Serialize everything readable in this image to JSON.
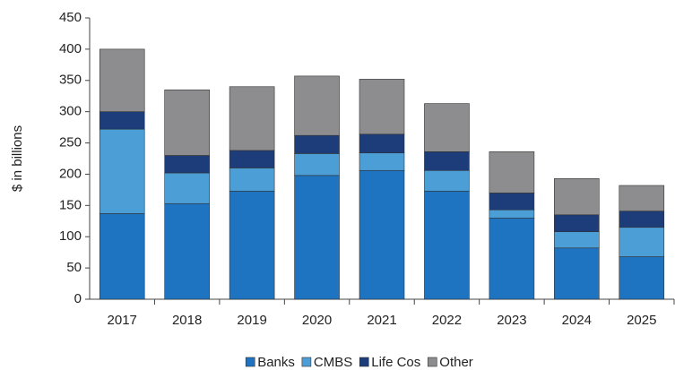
{
  "chart_data": {
    "type": "stacked_bar",
    "y_label": "$ in billions",
    "categories": [
      "2017",
      "2018",
      "2019",
      "2020",
      "2021",
      "2022",
      "2023",
      "2024",
      "2025"
    ],
    "series": [
      {
        "name": "Banks",
        "color": "#1f74c1",
        "values": [
          137,
          153,
          173,
          198,
          206,
          173,
          130,
          82,
          68
        ]
      },
      {
        "name": "CMBS",
        "color": "#4b9fd6",
        "values": [
          135,
          49,
          37,
          35,
          28,
          33,
          13,
          26,
          47
        ]
      },
      {
        "name": "Life Cos",
        "color": "#1d3c7a",
        "values": [
          28,
          28,
          28,
          29,
          30,
          30,
          27,
          27,
          26
        ]
      },
      {
        "name": "Other",
        "color": "#8d8d8f",
        "values": [
          100,
          105,
          102,
          95,
          88,
          77,
          66,
          58,
          41
        ]
      }
    ],
    "ylim": [
      0,
      450
    ],
    "yticks": [
      0,
      50,
      100,
      150,
      200,
      250,
      300,
      350,
      400,
      450
    ],
    "grid": false,
    "legend": "bottom"
  }
}
